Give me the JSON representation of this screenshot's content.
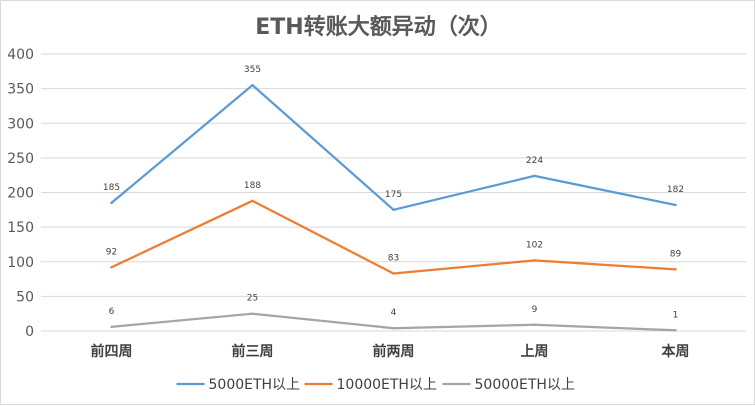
{
  "chart_data": {
    "type": "line",
    "title": "ETH转账大额异动（次）",
    "xlabel": "",
    "ylabel": "",
    "categories": [
      "前四周",
      "前三周",
      "前两周",
      "上周",
      "本周"
    ],
    "ylim": [
      0,
      400
    ],
    "yticks": [
      0,
      50,
      100,
      150,
      200,
      250,
      300,
      350,
      400
    ],
    "grid": true,
    "legend_position": "bottom",
    "series": [
      {
        "name": "5000ETH以上",
        "color": "#5b9bd5",
        "values": [
          185,
          355,
          175,
          224,
          182
        ]
      },
      {
        "name": "10000ETH以上",
        "color": "#ed7d31",
        "values": [
          92,
          188,
          83,
          102,
          89
        ]
      },
      {
        "name": "50000ETH以上",
        "color": "#a5a5a5",
        "values": [
          6,
          25,
          4,
          9,
          1
        ]
      }
    ]
  }
}
